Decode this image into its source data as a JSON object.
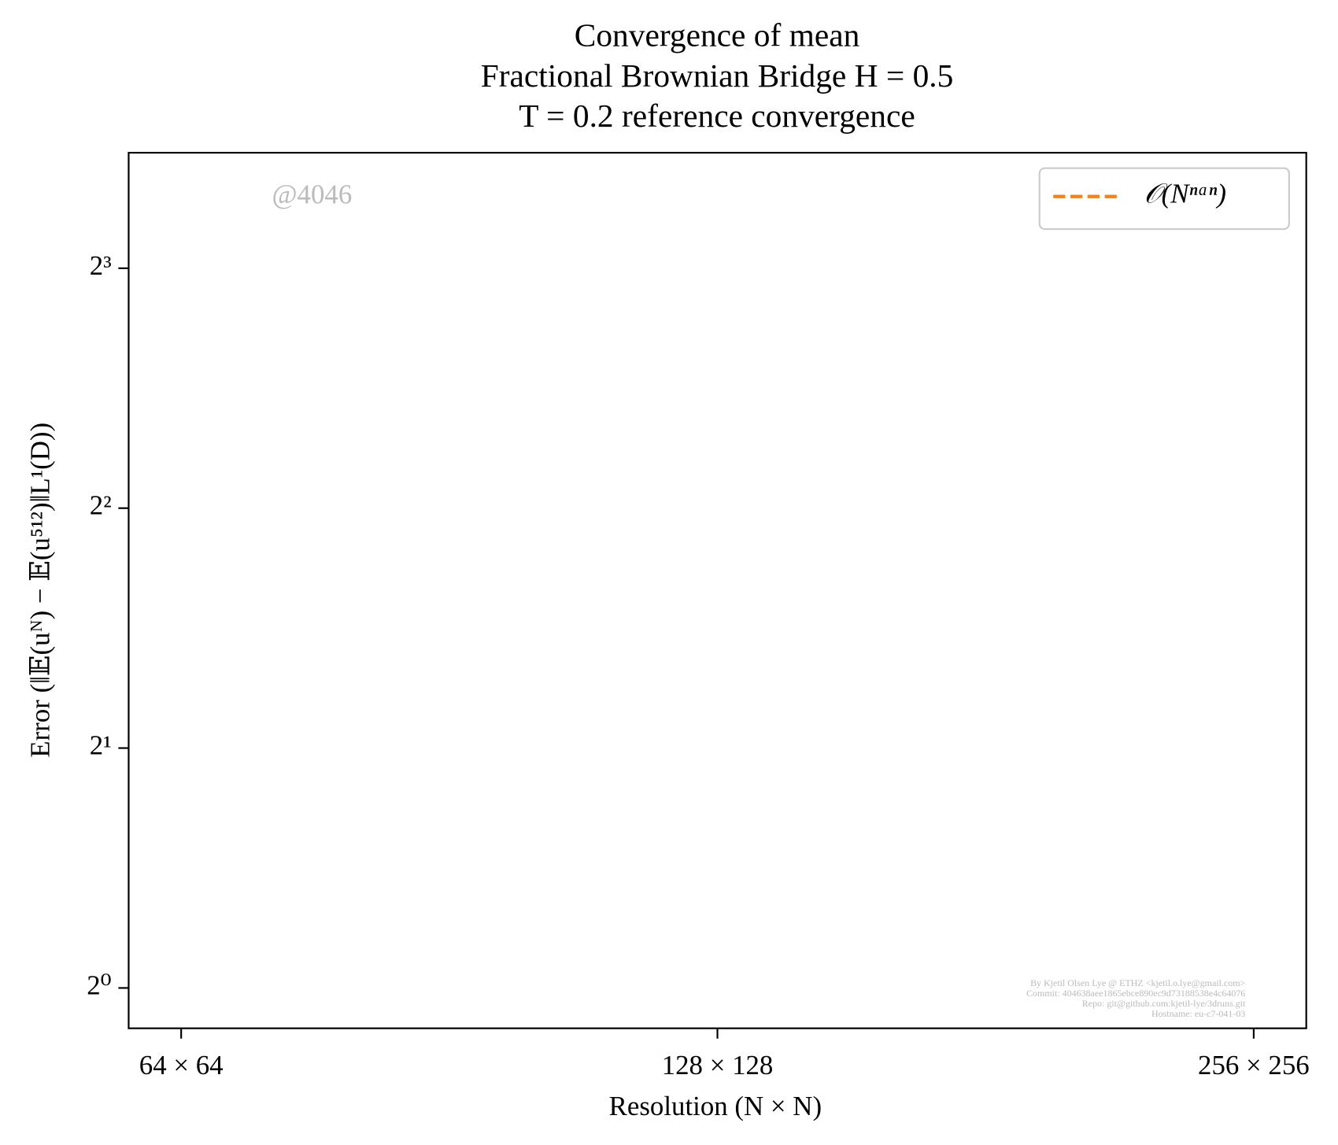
{
  "chart_data": {
    "type": "line",
    "title": [
      "Convergence of mean",
      "Fractional Brownian Bridge H = 0.5",
      "T = 0.2 reference convergence"
    ],
    "xlabel": "Resolution (N × N)",
    "ylabel": "Error (‖𝔼(uᴺ) − 𝔼(u⁵¹²)‖L¹(D))",
    "x": [],
    "series": [
      {
        "name": "𝒪(Nⁿᵃⁿ)",
        "color": "#ff7f0e",
        "linestyle": "dashed",
        "values": []
      }
    ],
    "xscale": "log",
    "yscale": "log",
    "xlim": [
      59.8,
      274
    ],
    "ylim": [
      0.89,
      11.17
    ],
    "xticks": [
      {
        "value": 64,
        "label": "64 × 64"
      },
      {
        "value": 128,
        "label": "128 × 128"
      },
      {
        "value": 256,
        "label": "256 × 256"
      }
    ],
    "yticks": [
      {
        "value": 1,
        "label": "2⁰"
      },
      {
        "value": 2,
        "label": "2¹"
      },
      {
        "value": 4,
        "label": "2²"
      },
      {
        "value": 8,
        "label": "2³"
      }
    ],
    "grid": false,
    "legend": "upper right",
    "annotations": [
      "@4046",
      "By Kjetil Olsen Lye @ ETHZ <kjetil.o.lye@gmail.com>",
      "Commit: 404638aee1865ebce890ec9d73188538e4c64076",
      "Repo: git@github.com:kjetil-lye/3druns.git",
      "Hostname: eu-c7-041-03"
    ]
  }
}
